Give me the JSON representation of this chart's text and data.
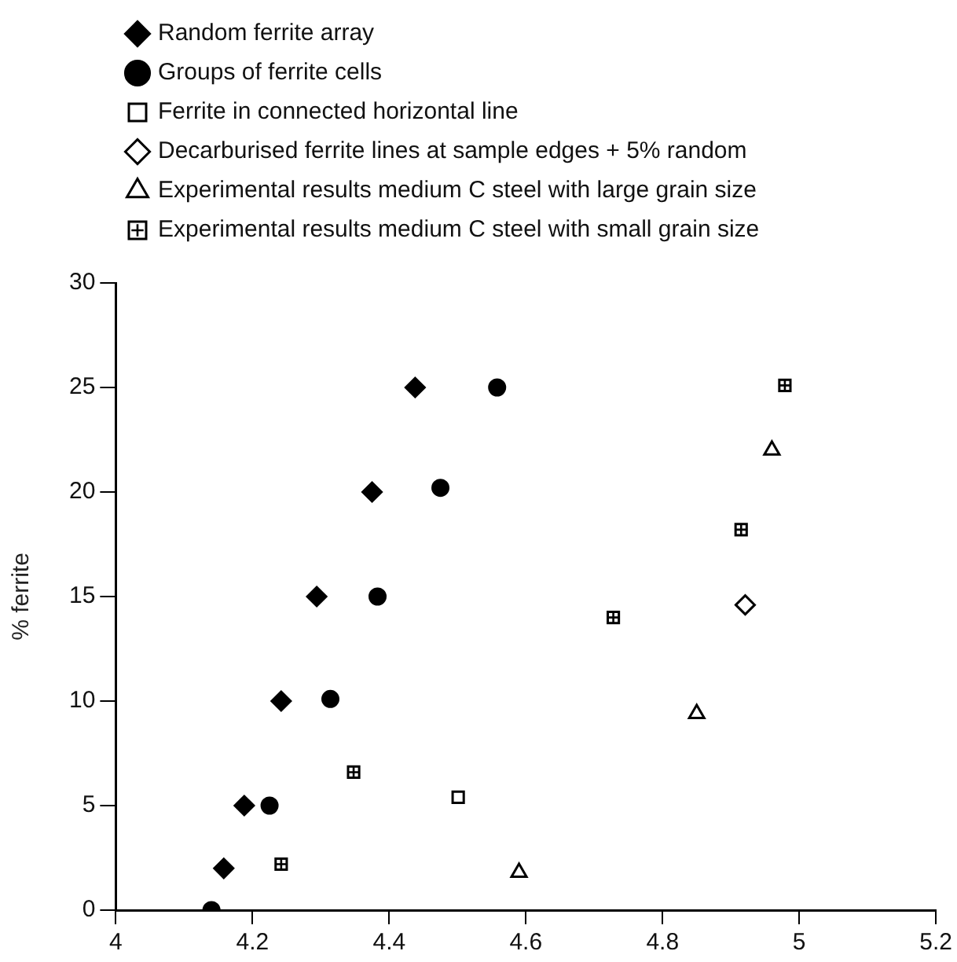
{
  "chart_data": {
    "type": "scatter",
    "ylabel": "% ferrite",
    "xlim": [
      4,
      5.2
    ],
    "xticks": [
      4,
      4.2,
      4.4,
      4.6,
      4.8,
      5,
      5.2
    ],
    "ylim": [
      0,
      30
    ],
    "yticks": [
      0,
      5,
      10,
      15,
      20,
      25,
      30
    ],
    "grid": false,
    "legend": "top",
    "series": [
      {
        "name": "Random ferrite array",
        "color": "#000000",
        "marker": "diamond",
        "x": [
          4.158,
          4.188,
          4.242,
          4.294,
          4.375,
          4.438
        ],
        "values": [
          2,
          5,
          10,
          15,
          20,
          25
        ]
      },
      {
        "name": "Groups of ferrite cells",
        "color": "#000000",
        "marker": "circle",
        "x": [
          4.14,
          4.225,
          4.314,
          4.383,
          4.475,
          4.558
        ],
        "values": [
          0,
          5,
          10.1,
          15,
          20.2,
          25
        ]
      },
      {
        "name": "Ferrite in connected horizontal line",
        "color": "#000000",
        "marker": "square",
        "x": [
          4.501
        ],
        "values": [
          5.4
        ]
      },
      {
        "name": "Decarburised ferrite lines at sample edges + 5% random",
        "color": "#000000",
        "marker": "diamond",
        "x": [
          4.921
        ],
        "values": [
          14.6
        ]
      },
      {
        "name": "Experimental results medium C steel with large grain size",
        "color": "#000000",
        "marker": "triangle",
        "x": [
          4.59,
          4.85,
          4.96
        ],
        "values": [
          1.8,
          9.4,
          22
        ]
      },
      {
        "name": "Experimental results medium C steel with small grain size",
        "color": "#000000",
        "marker": "square",
        "x": [
          4.242,
          4.348,
          4.728,
          4.915,
          4.979
        ],
        "values": [
          2.2,
          6.6,
          14,
          18.2,
          25.1
        ]
      }
    ]
  }
}
